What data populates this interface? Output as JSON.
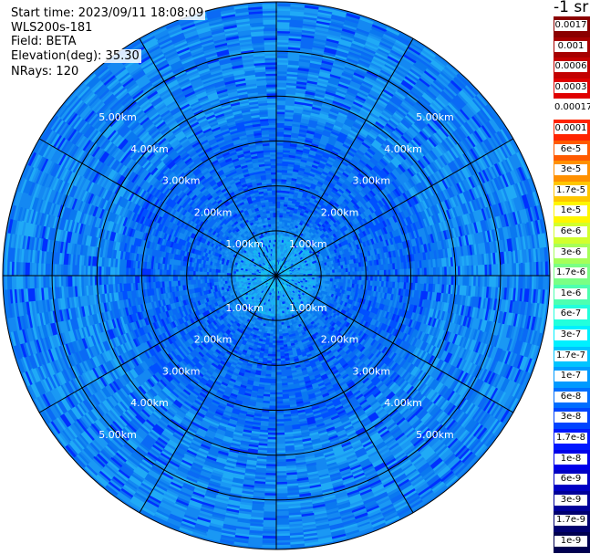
{
  "header": {
    "start_time": "Start time: 2023/09/11 18:08:09",
    "instrument": "WLS200s-181",
    "field": "Field: BETA",
    "elevation": "Elevation(deg): 35.30",
    "nrays": "NRays: 120"
  },
  "colorbar": {
    "unit_label": "-1 sr",
    "ticks": [
      "0.0017",
      "0.001",
      "0.0006",
      "0.0003",
      "0.00017",
      "0.0001",
      "6e-5",
      "3e-5",
      "1.7e-5",
      "1e-5",
      "6e-6",
      "3e-6",
      "1.7e-6",
      "1e-6",
      "6e-7",
      "3e-7",
      "1.7e-7",
      "1e-7",
      "6e-8",
      "3e-8",
      "1.7e-8",
      "1e-8",
      "6e-9",
      "3e-9",
      "1.7e-9",
      "1e-9"
    ],
    "colors": [
      "#8b0000",
      "#a60000",
      "#c30000",
      "#e00000",
      "#ffffff",
      "#ff2400",
      "#ff5a00",
      "#ff9000",
      "#ffc600",
      "#fff600",
      "#d2ff2d",
      "#a6ff59",
      "#7aff84",
      "#4dffb0",
      "#22ffdc",
      "#00f0ff",
      "#00c4ff",
      "#009aff",
      "#006eff",
      "#0044ff",
      "#0018ff",
      "#0000ea",
      "#0000c4",
      "#00009a",
      "#000070",
      "#000050"
    ]
  },
  "chart_data": {
    "type": "heatmap",
    "projection": "polar PPI",
    "nrays": 120,
    "max_range_km": 6.1,
    "range_ring_labels": [
      "1.00km",
      "2.00km",
      "3.00km",
      "4.00km",
      "5.00km"
    ],
    "azimuth_spokes_deg": [
      0,
      30,
      60,
      90,
      120,
      150,
      180,
      210,
      240,
      270,
      300,
      330
    ],
    "color_scale": "log10 beta, 1e-9 to 0.0017 sr^-1",
    "dominant_value_range": [
      "3e-8",
      "3e-7"
    ]
  }
}
